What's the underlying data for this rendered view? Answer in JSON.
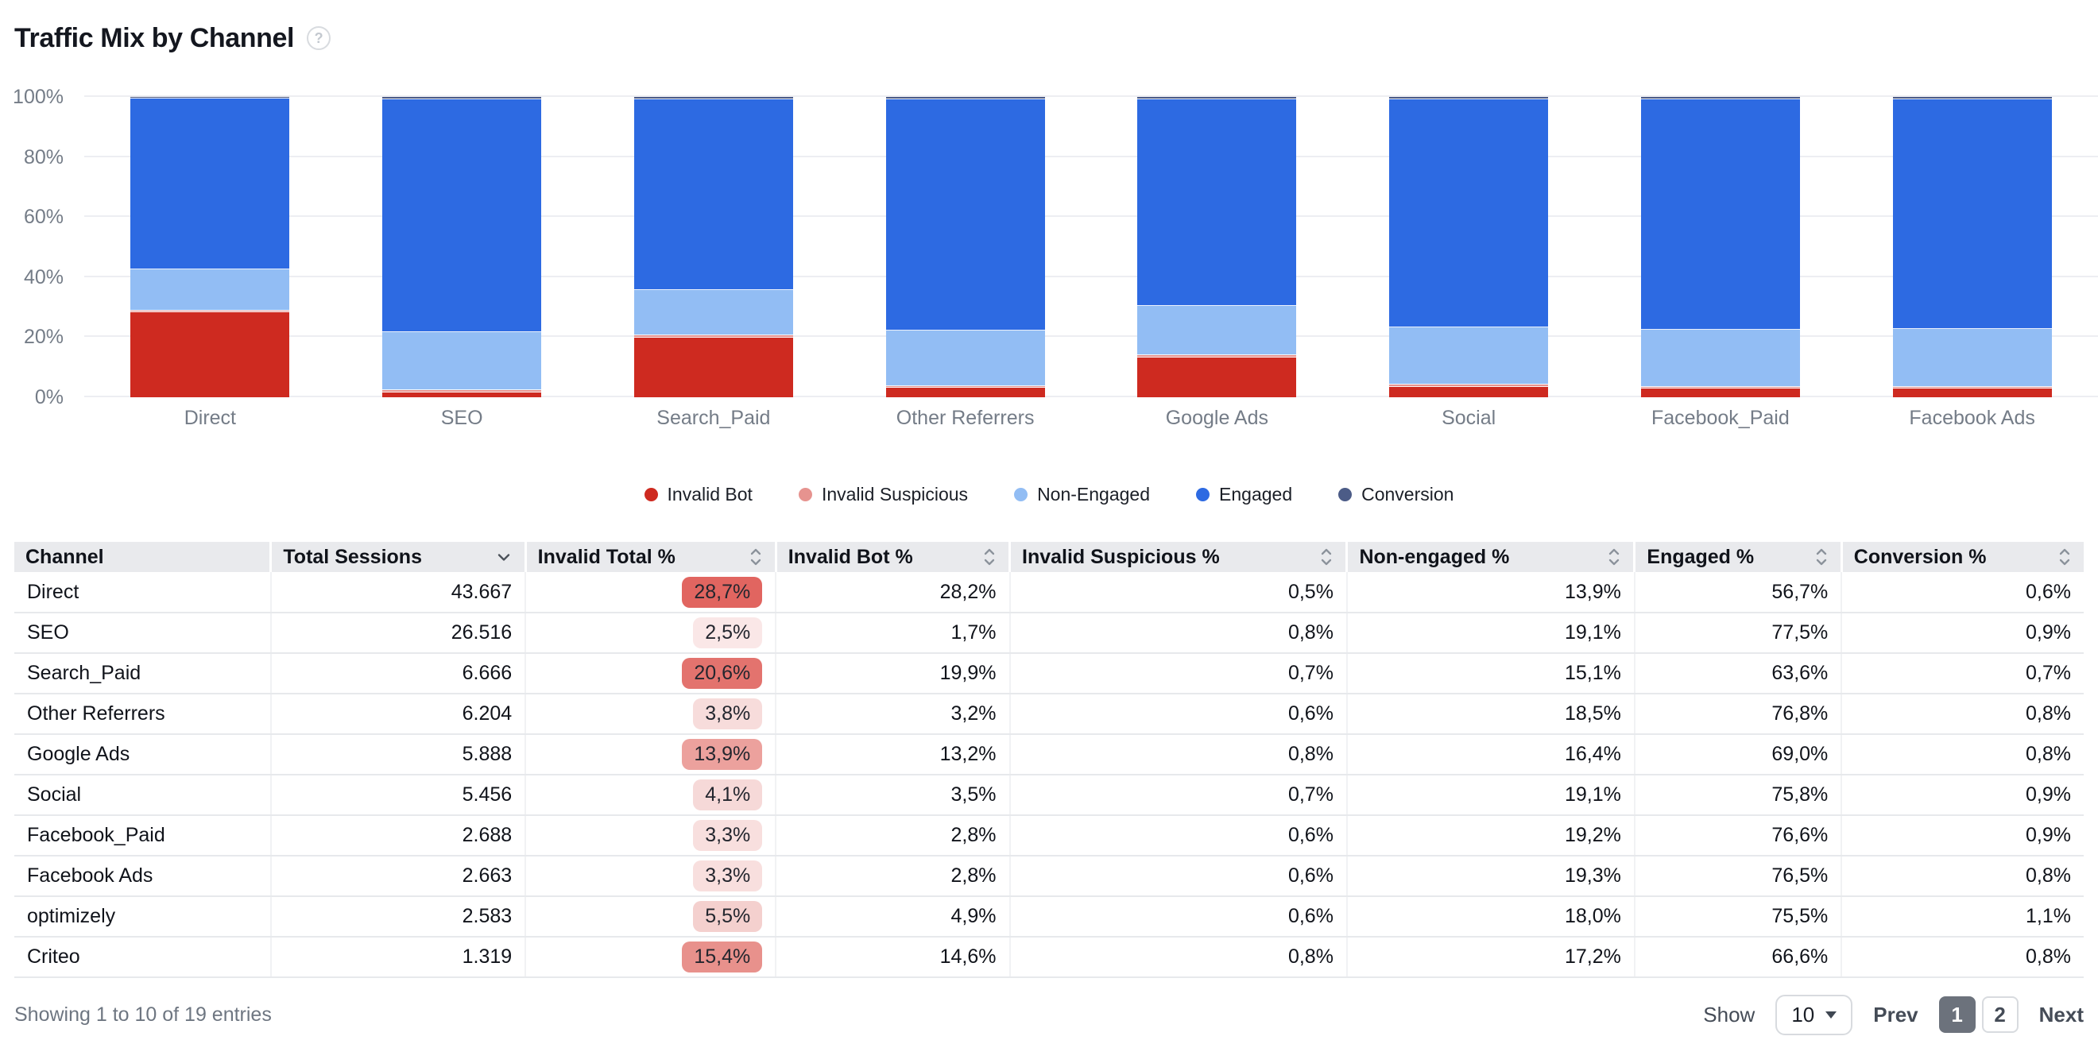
{
  "title": "Traffic Mix by Channel",
  "help_icon_glyph": "?",
  "chart_data": {
    "type": "bar",
    "stacked": true,
    "stack_mode": "percent",
    "title": "Traffic Mix by Channel",
    "categories": [
      "Direct",
      "SEO",
      "Search_Paid",
      "Other Referrers",
      "Google Ads",
      "Social",
      "Facebook_Paid",
      "Facebook Ads"
    ],
    "series": [
      {
        "name": "Invalid Bot",
        "color": "#CE2A20",
        "values": [
          28.2,
          1.7,
          19.9,
          3.2,
          13.2,
          3.5,
          2.8,
          2.8
        ]
      },
      {
        "name": "Invalid Suspicious",
        "color": "#E6938F",
        "values": [
          0.5,
          0.8,
          0.7,
          0.6,
          0.8,
          0.7,
          0.6,
          0.6
        ]
      },
      {
        "name": "Non-Engaged",
        "color": "#92BDF4",
        "values": [
          13.9,
          19.1,
          15.1,
          18.5,
          16.4,
          19.1,
          19.2,
          19.3
        ]
      },
      {
        "name": "Engaged",
        "color": "#2D6AE2",
        "values": [
          56.7,
          77.5,
          63.6,
          76.8,
          69.0,
          75.8,
          76.6,
          76.5
        ]
      },
      {
        "name": "Conversion",
        "color": "#4C5C87",
        "values": [
          0.6,
          0.9,
          0.7,
          0.8,
          0.8,
          0.9,
          0.9,
          0.8
        ]
      }
    ],
    "yticks": [
      0,
      20,
      40,
      60,
      80,
      100
    ],
    "ytick_suffix": "%",
    "ylim": [
      0,
      100
    ],
    "grid": true,
    "legend_position": "bottom"
  },
  "table": {
    "columns": [
      {
        "id": "channel",
        "label": "Channel",
        "sort": "none"
      },
      {
        "id": "total_sessions",
        "label": "Total Sessions",
        "sort": "desc"
      },
      {
        "id": "invalid_total",
        "label": "Invalid Total %",
        "sort": "both"
      },
      {
        "id": "invalid_bot",
        "label": "Invalid Bot %",
        "sort": "both"
      },
      {
        "id": "invalid_suspicious",
        "label": "Invalid Suspicious %",
        "sort": "both"
      },
      {
        "id": "non_engaged",
        "label": "Non-engaged %",
        "sort": "both"
      },
      {
        "id": "engaged",
        "label": "Engaged %",
        "sort": "both"
      },
      {
        "id": "conversion",
        "label": "Conversion %",
        "sort": "both"
      }
    ],
    "rows": [
      {
        "channel": "Direct",
        "total_sessions": "43.667",
        "invalid_total": "28,7%",
        "invalid_total_color": "#E16560",
        "invalid_bot": "28,2%",
        "invalid_suspicious": "0,5%",
        "non_engaged": "13,9%",
        "engaged": "56,7%",
        "conversion": "0,6%"
      },
      {
        "channel": "SEO",
        "total_sessions": "26.516",
        "invalid_total": "2,5%",
        "invalid_total_color": "#FAE7E7",
        "invalid_bot": "1,7%",
        "invalid_suspicious": "0,8%",
        "non_engaged": "19,1%",
        "engaged": "77,5%",
        "conversion": "0,9%"
      },
      {
        "channel": "Search_Paid",
        "total_sessions": "6.666",
        "invalid_total": "20,6%",
        "invalid_total_color": "#E3736E",
        "invalid_bot": "19,9%",
        "invalid_suspicious": "0,7%",
        "non_engaged": "15,1%",
        "engaged": "63,6%",
        "conversion": "0,7%"
      },
      {
        "channel": "Other Referrers",
        "total_sessions": "6.204",
        "invalid_total": "3,8%",
        "invalid_total_color": "#F7DCDB",
        "invalid_bot": "3,2%",
        "invalid_suspicious": "0,6%",
        "non_engaged": "18,5%",
        "engaged": "76,8%",
        "conversion": "0,8%"
      },
      {
        "channel": "Google Ads",
        "total_sessions": "5.888",
        "invalid_total": "13,9%",
        "invalid_total_color": "#ECA19D",
        "invalid_bot": "13,2%",
        "invalid_suspicious": "0,8%",
        "non_engaged": "16,4%",
        "engaged": "69,0%",
        "conversion": "0,8%"
      },
      {
        "channel": "Social",
        "total_sessions": "5.456",
        "invalid_total": "4,1%",
        "invalid_total_color": "#F6D9D8",
        "invalid_bot": "3,5%",
        "invalid_suspicious": "0,7%",
        "non_engaged": "19,1%",
        "engaged": "75,8%",
        "conversion": "0,9%"
      },
      {
        "channel": "Facebook_Paid",
        "total_sessions": "2.688",
        "invalid_total": "3,3%",
        "invalid_total_color": "#F8DFDE",
        "invalid_bot": "2,8%",
        "invalid_suspicious": "0,6%",
        "non_engaged": "19,2%",
        "engaged": "76,6%",
        "conversion": "0,9%"
      },
      {
        "channel": "Facebook Ads",
        "total_sessions": "2.663",
        "invalid_total": "3,3%",
        "invalid_total_color": "#F8DFDE",
        "invalid_bot": "2,8%",
        "invalid_suspicious": "0,6%",
        "non_engaged": "19,3%",
        "engaged": "76,5%",
        "conversion": "0,8%"
      },
      {
        "channel": "optimizely",
        "total_sessions": "2.583",
        "invalid_total": "5,5%",
        "invalid_total_color": "#F4D0CE",
        "invalid_bot": "4,9%",
        "invalid_suspicious": "0,6%",
        "non_engaged": "18,0%",
        "engaged": "75,5%",
        "conversion": "1,1%"
      },
      {
        "channel": "Criteo",
        "total_sessions": "1.319",
        "invalid_total": "15,4%",
        "invalid_total_color": "#E8918C",
        "invalid_bot": "14,6%",
        "invalid_suspicious": "0,8%",
        "non_engaged": "17,2%",
        "engaged": "66,6%",
        "conversion": "0,8%"
      }
    ]
  },
  "footer": {
    "summary": "Showing 1 to 10 of 19 entries",
    "show_label": "Show",
    "page_size": "10",
    "prev_label": "Prev",
    "pages": [
      "1",
      "2"
    ],
    "active_page": "1",
    "next_label": "Next"
  }
}
